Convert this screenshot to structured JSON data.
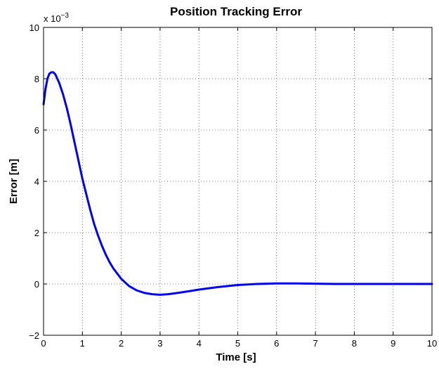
{
  "chart_data": {
    "type": "line",
    "title": "Position Tracking Error",
    "xlabel": "Time [s]",
    "ylabel": "Error [m]",
    "y_exponent_label": "x 10",
    "y_exponent_power": "−3",
    "xlim": [
      0,
      10
    ],
    "ylim": [
      -2,
      10
    ],
    "x_ticks": [
      "0",
      "1",
      "2",
      "3",
      "4",
      "5",
      "6",
      "7",
      "8",
      "9",
      "10"
    ],
    "y_ticks": [
      "−2",
      "0",
      "2",
      "4",
      "6",
      "8",
      "10"
    ],
    "grid": true,
    "line_color": "#0000ee",
    "series": [
      {
        "x": [
          0,
          0.05,
          0.1,
          0.15,
          0.2,
          0.25,
          0.3,
          0.4,
          0.5,
          0.6,
          0.7,
          0.8,
          0.9,
          1.0,
          1.1,
          1.2,
          1.3,
          1.4,
          1.5,
          1.6,
          1.7,
          1.8,
          1.9,
          2.0,
          2.2,
          2.4,
          2.6,
          2.8,
          3.0,
          3.2,
          3.5,
          3.8,
          4.0,
          4.5,
          5.0,
          5.5,
          6.0,
          6.5,
          7.0,
          7.5,
          8.0,
          9.0,
          10.0
        ],
        "y": [
          7.0,
          7.6,
          8.0,
          8.2,
          8.25,
          8.25,
          8.18,
          7.85,
          7.4,
          6.85,
          6.2,
          5.5,
          4.8,
          4.1,
          3.5,
          2.9,
          2.35,
          1.9,
          1.5,
          1.15,
          0.85,
          0.6,
          0.4,
          0.2,
          -0.08,
          -0.25,
          -0.35,
          -0.4,
          -0.42,
          -0.4,
          -0.34,
          -0.27,
          -0.22,
          -0.12,
          -0.04,
          0.0,
          0.02,
          0.02,
          0.01,
          0.0,
          0.0,
          0.0,
          0.0
        ]
      }
    ]
  }
}
